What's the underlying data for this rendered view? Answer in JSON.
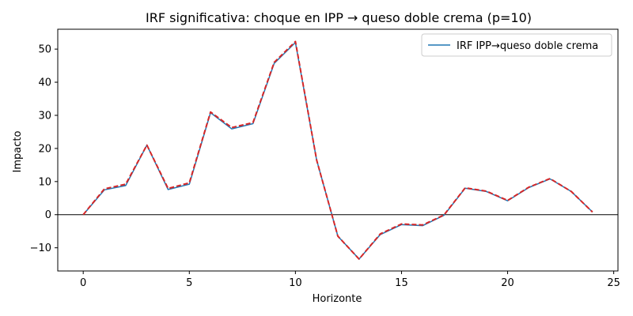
{
  "chart_data": {
    "type": "line",
    "title": "IRF significativa: choque en IPP → queso doble crema (p=10)",
    "xlabel": "Horizonte",
    "ylabel": "Impacto",
    "xlim": [
      -1.2,
      25.2
    ],
    "ylim": [
      -17,
      56
    ],
    "xticks": [
      0,
      5,
      10,
      15,
      20,
      25
    ],
    "yticks": [
      -10,
      0,
      10,
      20,
      30,
      40,
      50
    ],
    "ytick_labels": [
      "−10",
      "0",
      "10",
      "20",
      "30",
      "40",
      "50"
    ],
    "zero_line": true,
    "grid": false,
    "legend_position": "top-right",
    "x": [
      0,
      1,
      2,
      3,
      4,
      5,
      6,
      7,
      8,
      9,
      10,
      11,
      12,
      13,
      14,
      15,
      16,
      17,
      18,
      19,
      20,
      21,
      22,
      23,
      24
    ],
    "series": [
      {
        "name": "IRF IPP→queso doble crema",
        "color": "#1f77b4",
        "style": "solid",
        "values": [
          0,
          7.5,
          8.8,
          21.0,
          7.6,
          9.2,
          30.8,
          25.9,
          27.5,
          45.7,
          52.0,
          16.5,
          -6.5,
          -13.4,
          -6.0,
          -3.0,
          -3.3,
          -0.2,
          8.0,
          7.0,
          4.2,
          8.2,
          10.8,
          7.0,
          0.8
        ]
      },
      {
        "color": "#d62728",
        "style": "dashed",
        "values": [
          0,
          7.8,
          9.2,
          21.0,
          7.9,
          9.6,
          31.0,
          26.3,
          27.8,
          46.0,
          52.3,
          16.5,
          -6.5,
          -13.4,
          -5.8,
          -2.8,
          -3.1,
          -0.1,
          8.1,
          7.1,
          4.3,
          8.3,
          10.9,
          7.0,
          0.8
        ]
      }
    ],
    "legend": [
      {
        "label": "IRF IPP→queso doble crema",
        "color": "#1f77b4"
      }
    ]
  }
}
